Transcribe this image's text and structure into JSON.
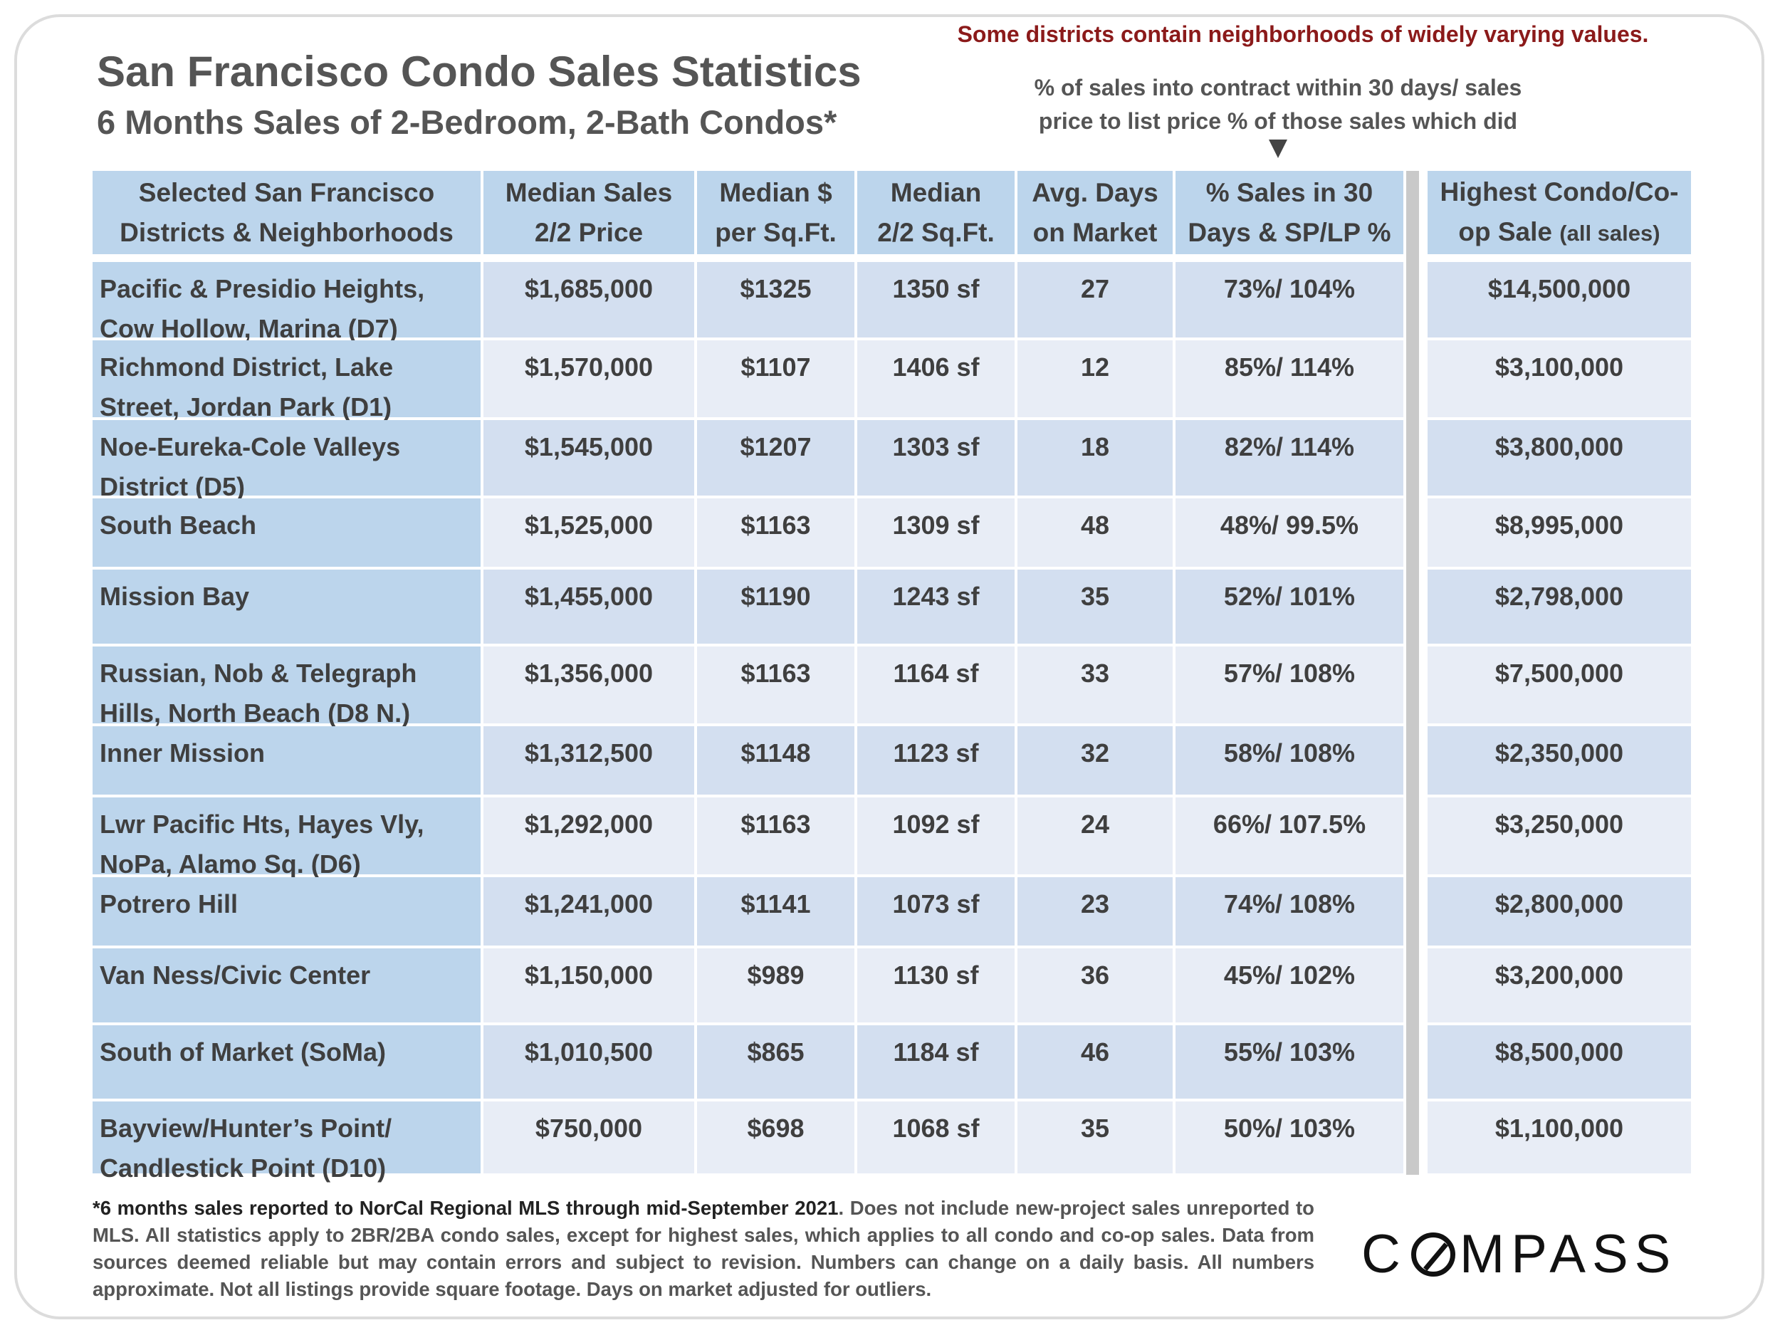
{
  "header": {
    "title": "San Francisco Condo Sales Statistics",
    "subtitle": "6 Months Sales of 2-Bedroom, 2-Bath Condos*",
    "warning": "Some districts contain neighborhoods of widely varying values.",
    "note_line1": "% of sales into contract within 30 days/ sales",
    "note_line2": "price to list price % of those sales which did"
  },
  "table": {
    "headers": [
      {
        "l1": "Selected San Francisco",
        "l2": "Districts & Neighborhoods"
      },
      {
        "l1": "Median Sales",
        "l2": "2/2 Price"
      },
      {
        "l1": "Median $",
        "l2": "per Sq.Ft."
      },
      {
        "l1": "Median",
        "l2": "2/2 Sq.Ft."
      },
      {
        "l1": "Avg. Days",
        "l2": "on Market"
      },
      {
        "l1": "% Sales in 30",
        "l2": "Days & SP/LP %"
      },
      {
        "l1": "Highest Condo/Co-",
        "l2": "op Sale",
        "l2_small": "(all sales)"
      }
    ],
    "rows": [
      {
        "name1": "Pacific & Presidio Heights,",
        "name2": "Cow Hollow, Marina (D7)",
        "price": "$1,685,000",
        "ppsf": "$1325",
        "sqft": "1350 sf",
        "dom": "27",
        "pct": "73%/ 104%",
        "high": "$14,500,000"
      },
      {
        "name1": "Richmond District, Lake",
        "name2": "Street, Jordan Park (D1)",
        "price": "$1,570,000",
        "ppsf": "$1107",
        "sqft": "1406 sf",
        "dom": "12",
        "pct": "85%/ 114%",
        "high": "$3,100,000"
      },
      {
        "name1": "Noe-Eureka-Cole Valleys",
        "name2": "District (D5)",
        "price": "$1,545,000",
        "ppsf": "$1207",
        "sqft": "1303 sf",
        "dom": "18",
        "pct": "82%/ 114%",
        "high": "$3,800,000"
      },
      {
        "name1": "South Beach",
        "name2": "",
        "price": "$1,525,000",
        "ppsf": "$1163",
        "sqft": "1309 sf",
        "dom": "48",
        "pct": "48%/ 99.5%",
        "high": "$8,995,000"
      },
      {
        "name1": "Mission Bay",
        "name2": "",
        "price": "$1,455,000",
        "ppsf": "$1190",
        "sqft": "1243 sf",
        "dom": "35",
        "pct": "52%/ 101%",
        "high": "$2,798,000"
      },
      {
        "name1": "Russian, Nob & Telegraph",
        "name2": "Hills, North Beach (D8 N.)",
        "price": "$1,356,000",
        "ppsf": "$1163",
        "sqft": "1164 sf",
        "dom": "33",
        "pct": "57%/ 108%",
        "high": "$7,500,000"
      },
      {
        "name1": "Inner Mission",
        "name2": "",
        "price": "$1,312,500",
        "ppsf": "$1148",
        "sqft": "1123 sf",
        "dom": "32",
        "pct": "58%/ 108%",
        "high": "$2,350,000"
      },
      {
        "name1": "Lwr Pacific Hts, Hayes Vly,",
        "name2": "NoPa, Alamo Sq. (D6)",
        "price": "$1,292,000",
        "ppsf": "$1163",
        "sqft": "1092 sf",
        "dom": "24",
        "pct": "66%/ 107.5%",
        "high": "$3,250,000"
      },
      {
        "name1": "Potrero Hill",
        "name2": "",
        "price": "$1,241,000",
        "ppsf": "$1141",
        "sqft": "1073 sf",
        "dom": "23",
        "pct": "74%/ 108%",
        "high": "$2,800,000"
      },
      {
        "name1": "Van Ness/Civic Center",
        "name2": "",
        "price": "$1,150,000",
        "ppsf": "$989",
        "sqft": "1130 sf",
        "dom": "36",
        "pct": "45%/ 102%",
        "high": "$3,200,000"
      },
      {
        "name1": "South of Market (SoMa)",
        "name2": "",
        "price": "$1,010,500",
        "ppsf": "$865",
        "sqft": "1184 sf",
        "dom": "46",
        "pct": "55%/ 103%",
        "high": "$8,500,000"
      },
      {
        "name1": "Bayview/Hunter’s Point/",
        "name2": "Candlestick Point (D10)",
        "price": "$750,000",
        "ppsf": "$698",
        "sqft": "1068 sf",
        "dom": "35",
        "pct": "50%/ 103%",
        "high": "$1,100,000"
      }
    ]
  },
  "footnote": {
    "lead": "*6 months sales reported to NorCal Regional MLS through mid-September 2021",
    "rest": ". Does not include new-project sales unreported to MLS. All statistics apply to 2BR/2BA condo sales, except for highest sales, which applies to all condo and co-op sales. Data from sources deemed reliable but may contain errors and subject to revision. Numbers can change on a daily basis. All numbers approximate. Not all listings provide square footage. Days on market adjusted for outliers."
  },
  "logo": {
    "text_before": "C",
    "text_after": "MPASS"
  }
}
